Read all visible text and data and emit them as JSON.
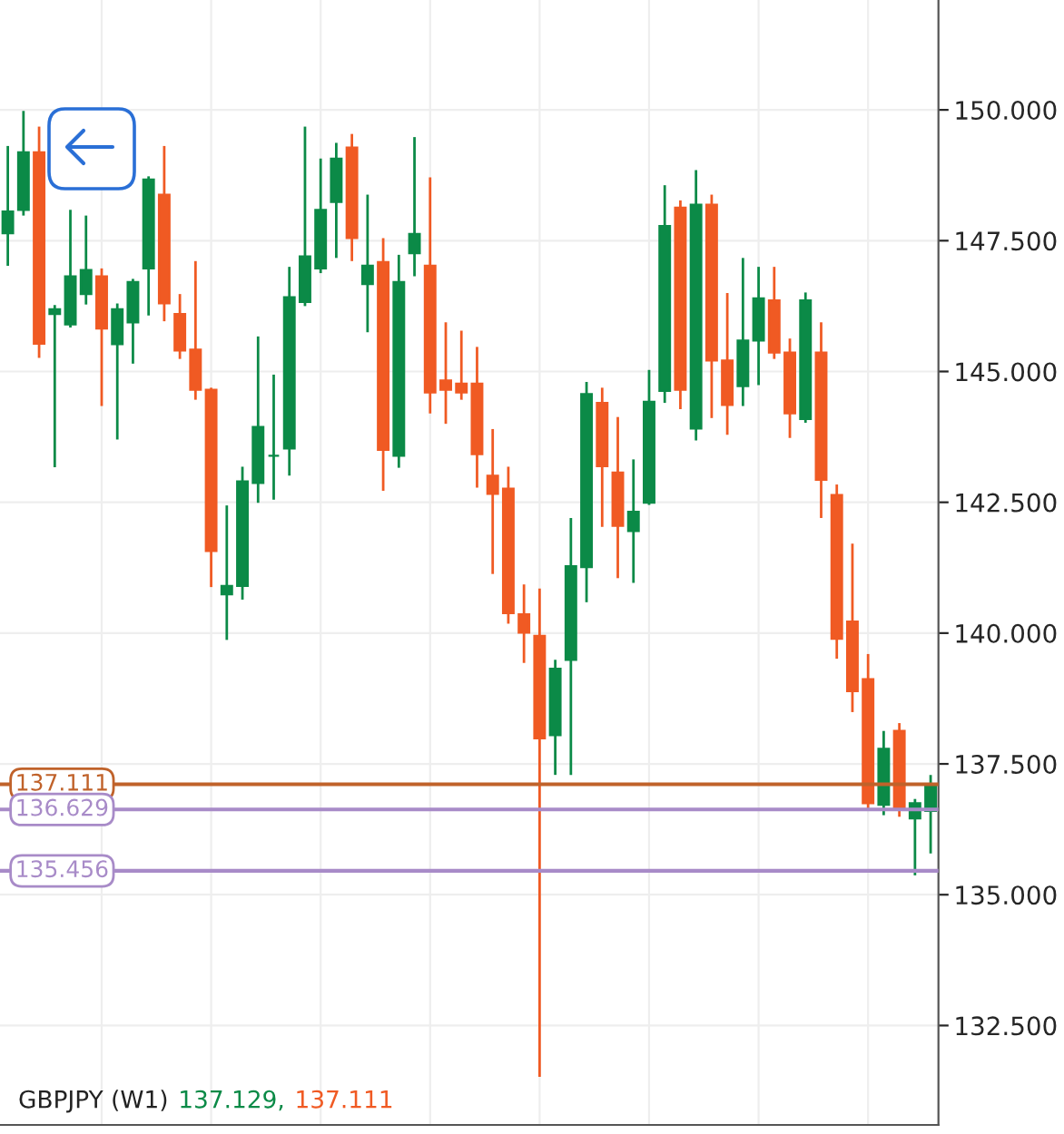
{
  "chart_data": {
    "type": "candlestick",
    "annotations": [
      "GBPJPY (W1)",
      "137.129,",
      "137.111"
    ],
    "categories": [
      null,
      null,
      null,
      null,
      null,
      null,
      null,
      null,
      null,
      null,
      null,
      null,
      null,
      null,
      null,
      null,
      null,
      null,
      null,
      null,
      null,
      null,
      null,
      null,
      null,
      null,
      null,
      null,
      null,
      null,
      null,
      null,
      null,
      null,
      null,
      null,
      null,
      null,
      null,
      null,
      null,
      null,
      null,
      null,
      null,
      null,
      null,
      null,
      null,
      null,
      null,
      null,
      null,
      null,
      null,
      null,
      null,
      null,
      null,
      null
    ],
    "ohlc": [
      [
        147.64,
        149.31,
        147.02,
        148.06
      ],
      [
        148.09,
        149.98,
        147.98,
        149.19
      ],
      [
        149.19,
        149.68,
        145.26,
        145.53
      ],
      [
        146.1,
        146.27,
        143.17,
        146.19
      ],
      [
        145.9,
        148.09,
        145.84,
        146.82
      ],
      [
        146.48,
        147.98,
        146.28,
        146.94
      ],
      [
        146.82,
        146.97,
        144.34,
        145.82
      ],
      [
        145.52,
        146.3,
        143.7,
        146.19
      ],
      [
        145.94,
        146.77,
        145.15,
        146.71
      ],
      [
        146.97,
        148.73,
        146.07,
        148.67
      ],
      [
        148.38,
        149.31,
        145.96,
        146.3
      ],
      [
        146.1,
        146.48,
        145.24,
        145.4
      ],
      [
        145.42,
        147.11,
        144.46,
        144.65
      ],
      [
        144.65,
        144.69,
        140.88,
        141.57
      ],
      [
        140.74,
        142.44,
        139.87,
        140.9
      ],
      [
        140.9,
        143.18,
        140.64,
        142.9
      ],
      [
        142.87,
        145.67,
        142.49,
        143.94
      ],
      [
        143.39,
        144.94,
        142.55,
        143.39
      ],
      [
        143.53,
        147.0,
        143.01,
        146.42
      ],
      [
        146.33,
        149.68,
        146.25,
        147.2
      ],
      [
        146.97,
        149.07,
        146.88,
        148.09
      ],
      [
        148.24,
        149.37,
        147.17,
        149.07
      ],
      [
        149.28,
        149.54,
        147.11,
        147.55
      ],
      [
        146.67,
        148.38,
        145.75,
        147.02
      ],
      [
        147.09,
        147.55,
        142.72,
        143.5
      ],
      [
        143.39,
        147.23,
        143.16,
        146.71
      ],
      [
        147.26,
        149.48,
        146.82,
        147.63
      ],
      [
        147.02,
        148.71,
        144.2,
        144.6
      ],
      [
        144.83,
        145.94,
        144.0,
        144.65
      ],
      [
        144.77,
        145.78,
        144.46,
        144.6
      ],
      [
        144.77,
        145.47,
        142.78,
        143.42
      ],
      [
        143.01,
        143.9,
        141.13,
        142.66
      ],
      [
        142.76,
        143.18,
        140.18,
        140.38
      ],
      [
        140.36,
        140.93,
        139.43,
        140.01
      ],
      [
        139.95,
        140.85,
        131.52,
        137.99
      ],
      [
        138.05,
        139.49,
        137.29,
        139.32
      ],
      [
        139.49,
        142.2,
        137.29,
        141.28
      ],
      [
        141.26,
        144.8,
        140.59,
        144.57
      ],
      [
        144.4,
        144.69,
        142.03,
        143.19
      ],
      [
        143.07,
        144.13,
        141.05,
        142.05
      ],
      [
        141.95,
        143.32,
        140.96,
        142.32
      ],
      [
        142.49,
        145.03,
        142.45,
        144.42
      ],
      [
        144.63,
        148.56,
        144.4,
        147.78
      ],
      [
        148.13,
        148.27,
        144.28,
        144.65
      ],
      [
        143.91,
        148.85,
        143.68,
        148.19
      ],
      [
        148.19,
        148.38,
        144.11,
        145.21
      ],
      [
        145.21,
        146.5,
        143.79,
        144.36
      ],
      [
        144.72,
        147.17,
        144.34,
        145.59
      ],
      [
        145.59,
        147.0,
        144.74,
        146.4
      ],
      [
        146.36,
        147.0,
        145.24,
        145.36
      ],
      [
        145.36,
        145.63,
        143.73,
        144.2
      ],
      [
        144.09,
        146.51,
        144.02,
        146.36
      ],
      [
        145.36,
        145.94,
        142.2,
        142.93
      ],
      [
        142.64,
        142.84,
        139.51,
        139.89
      ],
      [
        140.22,
        141.71,
        138.49,
        138.89
      ],
      [
        139.12,
        139.6,
        136.64,
        136.75
      ],
      [
        136.72,
        138.13,
        136.52,
        137.79
      ],
      [
        138.13,
        138.28,
        136.49,
        136.64
      ],
      [
        136.46,
        136.83,
        135.37,
        136.75
      ],
      [
        136.6,
        137.29,
        135.79,
        137.11
      ]
    ],
    "colors": [
      "#0b8a47",
      "#0b8a47",
      "#f05a23",
      "#0b8a47",
      "#0b8a47",
      "#0b8a47",
      "#f05a23",
      "#0b8a47",
      "#0b8a47",
      "#0b8a47",
      "#f05a23",
      "#f05a23",
      "#f05a23",
      "#f05a23",
      "#0b8a47",
      "#0b8a47",
      "#0b8a47",
      "#0b8a47",
      "#0b8a47",
      "#0b8a47",
      "#0b8a47",
      "#0b8a47",
      "#f05a23",
      "#0b8a47",
      "#f05a23",
      "#0b8a47",
      "#0b8a47",
      "#f05a23",
      "#f05a23",
      "#f05a23",
      "#f05a23",
      "#f05a23",
      "#f05a23",
      "#f05a23",
      "#f05a23",
      "#0b8a47",
      "#0b8a47",
      "#0b8a47",
      "#f05a23",
      "#f05a23",
      "#0b8a47",
      "#0b8a47",
      "#0b8a47",
      "#f05a23",
      "#0b8a47",
      "#f05a23",
      "#f05a23",
      "#0b8a47",
      "#0b8a47",
      "#f05a23",
      "#f05a23",
      "#0b8a47",
      "#f05a23",
      "#f05a23",
      "#f05a23",
      "#f05a23",
      "#0b8a47",
      "#f05a23",
      "#0b8a47",
      "#0b8a47"
    ],
    "ylim": [
      130.6,
      152.1
    ],
    "yticks": [
      {
        "value": 132.5,
        "label": "132.500"
      },
      {
        "value": 135,
        "label": "135.000"
      },
      {
        "value": 137.5,
        "label": "137.500"
      },
      {
        "value": 140,
        "label": "140.000"
      },
      {
        "value": 142.5,
        "label": "142.500"
      },
      {
        "value": 145,
        "label": "145.000"
      },
      {
        "value": 147.5,
        "label": "147.500"
      },
      {
        "value": 150,
        "label": "150.000"
      }
    ],
    "ref_lines": [
      {
        "axis": "y",
        "value": 137.111,
        "label": "137.111",
        "color": "#c0622a"
      },
      {
        "axis": "y",
        "value": 136.629,
        "label": "136.629",
        "color": "#a88bc8"
      },
      {
        "axis": "y",
        "value": 135.456,
        "label": "135.456",
        "color": "#a88bc8"
      }
    ],
    "tick_labels": "y",
    "grid": true
  }
}
